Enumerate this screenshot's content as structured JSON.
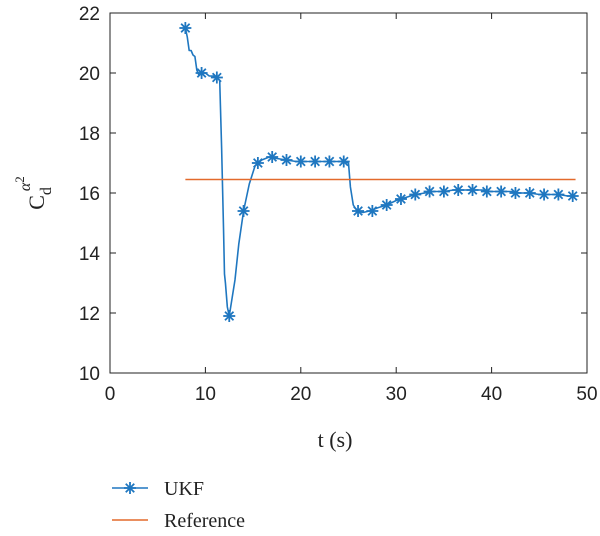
{
  "chart_data": {
    "type": "line",
    "xlabel": "t (s)",
    "ylabel": {
      "base": "C",
      "subscript": "d",
      "superscript_symbol": "α",
      "superscript_power": "2"
    },
    "xlim": [
      0,
      50
    ],
    "ylim": [
      10,
      22
    ],
    "xticks": [
      0,
      10,
      20,
      30,
      40,
      50
    ],
    "yticks": [
      10,
      12,
      14,
      16,
      18,
      20,
      22
    ],
    "grid": false,
    "legend_position": "bottom-left",
    "series": [
      {
        "name": "UKF",
        "color": "#1f77c0",
        "marker": "asterisk",
        "x": [
          7.9,
          8.1,
          8.3,
          8.5,
          8.7,
          8.9,
          9.1,
          9.3,
          9.6,
          10.0,
          10.4,
          10.8,
          11.2,
          11.5,
          11.7,
          11.9,
          12.0,
          12.1,
          12.3,
          12.5,
          12.8,
          13.1,
          13.5,
          14.0,
          14.6,
          15.2,
          15.9,
          16.7,
          17.5,
          18.5,
          19.5,
          20.5,
          21.5,
          22.5,
          23.5,
          24.5,
          25.0,
          25.2,
          25.5,
          25.9,
          26.5,
          27.2,
          28.0,
          29.0,
          30.0,
          31.0,
          32.0,
          33.0,
          34.0,
          35.0,
          36.0,
          37.0,
          38.0,
          39.0,
          40.0,
          41.0,
          42.0,
          43.0,
          44.0,
          45.0,
          46.0,
          47.0,
          48.0,
          48.8
        ],
        "y": [
          21.5,
          21.2,
          20.75,
          20.75,
          20.6,
          20.55,
          20.1,
          19.95,
          20.0,
          20.0,
          19.9,
          19.9,
          19.85,
          19.75,
          17.5,
          14.8,
          13.3,
          13.0,
          12.2,
          11.9,
          12.5,
          13.1,
          14.3,
          15.4,
          16.3,
          16.9,
          17.1,
          17.2,
          17.15,
          17.1,
          17.05,
          17.05,
          17.05,
          17.05,
          17.05,
          17.05,
          17.0,
          16.2,
          15.6,
          15.4,
          15.35,
          15.4,
          15.5,
          15.6,
          15.75,
          15.85,
          15.95,
          16.0,
          16.05,
          16.05,
          16.1,
          16.1,
          16.1,
          16.1,
          16.05,
          16.05,
          16.05,
          16.0,
          16.0,
          15.95,
          15.95,
          15.95,
          15.9,
          15.9
        ],
        "markers_x": [
          7.9,
          9.6,
          11.2,
          12.5,
          14.0,
          15.5,
          17.0,
          18.5,
          20.0,
          21.5,
          23.0,
          24.5,
          26.0,
          27.5,
          29.0,
          30.5,
          32.0,
          33.5,
          35.0,
          36.5,
          38.0,
          39.5,
          41.0,
          42.5,
          44.0,
          45.5,
          47.0,
          48.5
        ],
        "markers_y": [
          21.5,
          20.0,
          19.85,
          11.9,
          15.4,
          17.0,
          17.2,
          17.1,
          17.05,
          17.05,
          17.05,
          17.05,
          15.4,
          15.4,
          15.6,
          15.8,
          15.95,
          16.05,
          16.05,
          16.1,
          16.1,
          16.05,
          16.05,
          16.0,
          16.0,
          15.95,
          15.95,
          15.9
        ]
      },
      {
        "name": "Reference",
        "color": "#e36a2c",
        "marker": "none",
        "x": [
          7.9,
          48.8
        ],
        "y": [
          16.45,
          16.45
        ]
      }
    ]
  }
}
